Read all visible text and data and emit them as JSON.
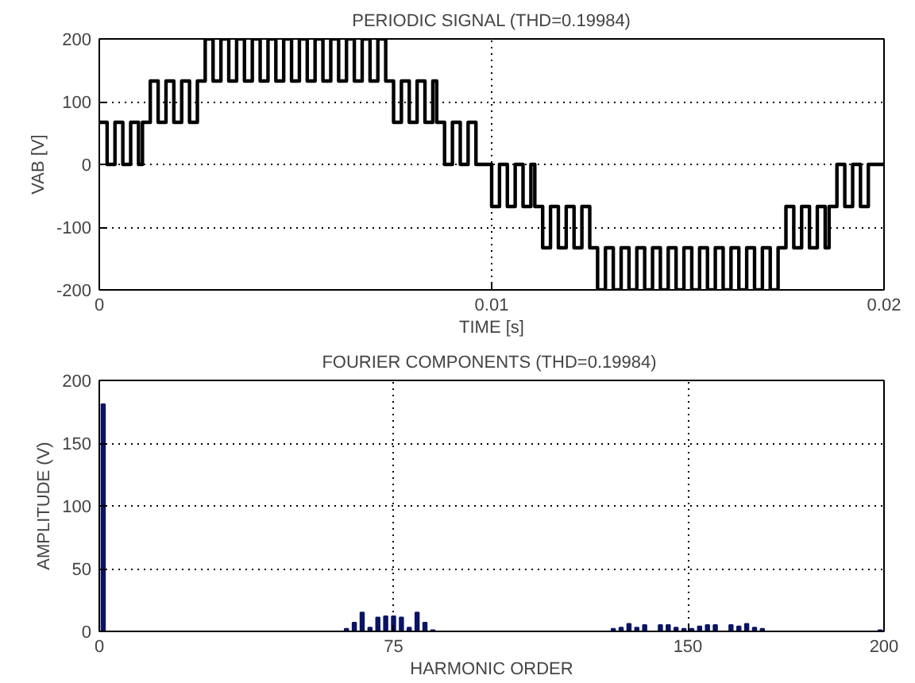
{
  "chart_data": [
    {
      "type": "step",
      "title": "PERIODIC SIGNAL (THD=0.19984)",
      "xlabel": "TIME [s]",
      "ylabel": "VAB [V]",
      "x": [
        0,
        0.0002,
        0.0004,
        0.0006,
        0.0008,
        0.001,
        0.0011,
        0.0013,
        0.0015,
        0.0017,
        0.0019,
        0.0021,
        0.0023,
        0.0025,
        0.0027,
        0.0029,
        0.0031,
        0.0033,
        0.0035,
        0.0037,
        0.0039,
        0.0041,
        0.0043,
        0.0045,
        0.0047,
        0.0049,
        0.0051,
        0.0053,
        0.0055,
        0.0057,
        0.0059,
        0.0061,
        0.0063,
        0.0065,
        0.0067,
        0.0069,
        0.0071,
        0.0073,
        0.0075,
        0.0077,
        0.0079,
        0.0081,
        0.0083,
        0.0085,
        0.0086,
        0.0088,
        0.009,
        0.0092,
        0.0094,
        0.0096,
        0.01,
        0.0102,
        0.0104,
        0.0106,
        0.0108,
        0.011,
        0.0111,
        0.0113,
        0.0115,
        0.0117,
        0.0119,
        0.0121,
        0.0123,
        0.0125,
        0.0127,
        0.0129,
        0.0131,
        0.0133,
        0.0135,
        0.0137,
        0.0139,
        0.0141,
        0.0143,
        0.0145,
        0.0147,
        0.0149,
        0.0151,
        0.0153,
        0.0155,
        0.0157,
        0.0159,
        0.0161,
        0.0163,
        0.0165,
        0.0167,
        0.0169,
        0.0171,
        0.0173,
        0.0175,
        0.0177,
        0.0179,
        0.0181,
        0.0183,
        0.0185,
        0.0186,
        0.0188,
        0.019,
        0.0192,
        0.0194,
        0.0196,
        0.02
      ],
      "values": [
        67,
        0,
        67,
        0,
        67,
        0,
        67,
        133,
        67,
        133,
        67,
        133,
        67,
        133,
        200,
        133,
        200,
        133,
        200,
        133,
        200,
        133,
        200,
        133,
        200,
        133,
        200,
        133,
        200,
        133,
        200,
        133,
        200,
        133,
        200,
        133,
        200,
        133,
        67,
        133,
        67,
        133,
        67,
        133,
        67,
        0,
        67,
        0,
        67,
        0,
        -67,
        0,
        -67,
        0,
        -67,
        0,
        -67,
        -133,
        -67,
        -133,
        -67,
        -133,
        -67,
        -133,
        -200,
        -133,
        -200,
        -133,
        -200,
        -133,
        -200,
        -133,
        -200,
        -133,
        -200,
        -133,
        -200,
        -133,
        -200,
        -133,
        -200,
        -133,
        -200,
        -133,
        -200,
        -133,
        -200,
        -133,
        -67,
        -133,
        -67,
        -133,
        -67,
        -133,
        -67,
        0,
        -67,
        0,
        -67,
        0,
        0
      ],
      "color": "#000000",
      "xlim": [
        0,
        0.02
      ],
      "ylim": [
        -200,
        200
      ],
      "xticks": [
        0,
        0.01,
        0.02
      ],
      "yticks": [
        -200,
        -100,
        0,
        100,
        200
      ],
      "grid": true
    },
    {
      "type": "bar",
      "title": "FOURIER COMPONENTS  (THD=0.19984)",
      "xlabel": "HARMONIC ORDER",
      "ylabel": "AMPLITUDE (V)",
      "x": [
        1,
        63,
        65,
        67,
        69,
        71,
        73,
        75,
        77,
        79,
        81,
        83,
        85,
        131,
        133,
        135,
        137,
        139,
        143,
        145,
        147,
        149,
        151,
        153,
        155,
        157,
        161,
        163,
        165,
        167,
        169,
        199
      ],
      "values": [
        181,
        2,
        7,
        15,
        3,
        11,
        12,
        12,
        11,
        3,
        15,
        7,
        1,
        2,
        3,
        6,
        3,
        5,
        5,
        5,
        3,
        2,
        2,
        4,
        5,
        5,
        5,
        4,
        6,
        3,
        2,
        1
      ],
      "color": "#0a1464",
      "xlim": [
        0,
        200
      ],
      "ylim": [
        0,
        200
      ],
      "xticks": [
        0,
        75,
        150,
        200
      ],
      "yticks": [
        0,
        50,
        100,
        150,
        200
      ],
      "grid": true
    }
  ]
}
